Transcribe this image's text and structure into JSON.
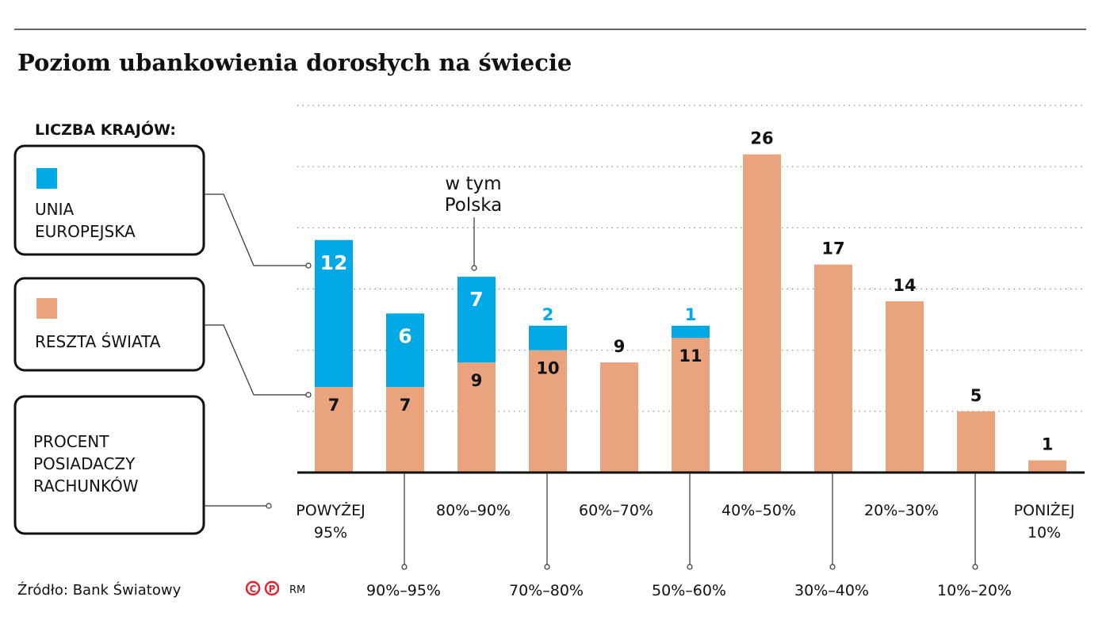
{
  "title": "Poziom ubankowienia dorosłych na świecie",
  "legend": {
    "heading": "LICZBA KRAJÓW:",
    "eu_line1": "UNIA",
    "eu_line2": "EUROPEJSKA",
    "rest": "RESZTA ŚWIATA",
    "pct_line1": "PROCENT",
    "pct_line2": "POSIADACZY",
    "pct_line3": "RACHUNKÓW"
  },
  "annotation": {
    "line1": "w tym",
    "line2": "Polska"
  },
  "source": "Źródło: Bank Światowy",
  "credit": "RM",
  "logo_text": "©℗",
  "colors": {
    "eu": "#00a8e6",
    "rest": "#e9a47e",
    "logo": "#e32530"
  },
  "chart_data": {
    "type": "bar",
    "stacked": true,
    "categories": [
      [
        "POWYŻEJ",
        "95%"
      ],
      [
        "90%–95%"
      ],
      [
        "80%–90%"
      ],
      [
        "70%–80%"
      ],
      [
        "60%–70%"
      ],
      [
        "50%–60%"
      ],
      [
        "40%–50%"
      ],
      [
        "30%–40%"
      ],
      [
        "20%–30%"
      ],
      [
        "10%–20%"
      ],
      [
        "PONIŻEJ",
        "10%"
      ]
    ],
    "series": [
      {
        "name": "RESZTA ŚWIATA",
        "values": [
          7,
          7,
          9,
          10,
          9,
          11,
          26,
          17,
          14,
          5,
          1
        ]
      },
      {
        "name": "UNIA EUROPEJSKA",
        "values": [
          12,
          6,
          7,
          2,
          null,
          1,
          null,
          null,
          null,
          null,
          null
        ]
      }
    ],
    "ylim": [
      0,
      30
    ],
    "grid": true,
    "legend": "left"
  }
}
